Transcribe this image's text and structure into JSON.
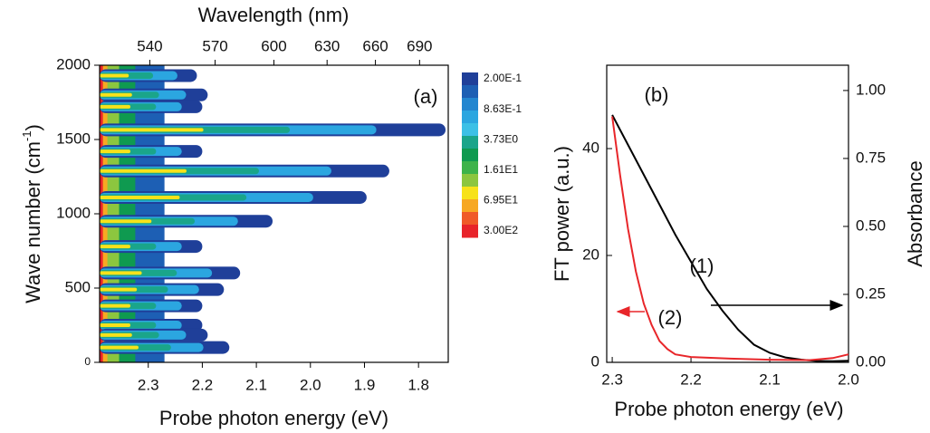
{
  "chart_data": [
    {
      "type": "contour",
      "annotation": "(a)",
      "x_label": "Probe photon energy (eV)",
      "xlim": [
        2.39,
        1.745
      ],
      "xticks": [
        2.3,
        2.2,
        2.1,
        {
          "value": 2,
          "label": "2.0"
        },
        1.9,
        1.8
      ],
      "x2_label": "Wavelength (nm)",
      "x2lim": [
        519,
        711
      ],
      "x2scale": "reciprocal",
      "x2ticks": [
        540,
        570,
        600,
        630,
        660,
        690
      ],
      "y_label": [
        "Wave number (cm",
        "-1",
        ")"
      ],
      "ylim": [
        0,
        2000
      ],
      "yticks": [
        0,
        500,
        1000,
        1500,
        2000
      ],
      "colorbar": {
        "labels": [
          "2.00E-1",
          "8.63E-1",
          "3.73E0",
          "1.61E1",
          "6.95E1",
          "3.00E2"
        ],
        "colors": [
          "#1f3f99",
          "#1d5fb4",
          "#2386d0",
          "#2ba6e0",
          "#3cc0e6",
          "#1aa58a",
          "#0f9a50",
          "#3db34a",
          "#8cc63f",
          "#f7e21a",
          "#f7a823",
          "#f05a28",
          "#e8232a"
        ]
      },
      "core_x_end": 2.27,
      "streaks": {
        "y": [
          1930,
          1800,
          1720,
          1565,
          1420,
          1288,
          1110,
          950,
          780,
          601,
          490,
          380,
          250,
          184,
          100
        ],
        "x_end": [
          2.21,
          2.19,
          2.2,
          1.75,
          2.2,
          1.854,
          1.896,
          2.07,
          2.2,
          2.13,
          2.16,
          2.2,
          2.2,
          2.19,
          2.15
        ]
      }
    },
    {
      "type": "line",
      "annotation": "(b)",
      "x_label": "Probe photon energy (eV)",
      "xlim": [
        2.307,
        2.0
      ],
      "xticks": [
        2.3,
        2.2,
        2.1,
        {
          "value": 2,
          "label": "2.0"
        }
      ],
      "y_label": "FT power (a.u.)",
      "ylim": [
        0,
        55.6
      ],
      "yticks": [
        0,
        20,
        40
      ],
      "y2_label": "Absorbance",
      "y2lim": [
        0,
        1.093
      ],
      "y2ticks": [
        {
          "value": 0,
          "label": "0.00"
        },
        {
          "value": 0.25,
          "label": "0.25"
        },
        {
          "value": 0.5,
          "label": "0.50"
        },
        {
          "value": 0.75,
          "label": "0.75"
        },
        {
          "value": 1,
          "label": "1.00"
        }
      ],
      "series": [
        {
          "name": "(1)",
          "color": "#000000",
          "axis": "y2",
          "x": [
            2.3,
            2.28,
            2.26,
            2.24,
            2.22,
            2.2,
            2.18,
            2.16,
            2.14,
            2.12,
            2.1,
            2.08,
            2.06,
            2.04,
            2.02,
            2.0
          ],
          "values": [
            0.91,
            0.8,
            0.69,
            0.58,
            0.47,
            0.37,
            0.27,
            0.19,
            0.12,
            0.065,
            0.035,
            0.018,
            0.01,
            0.005,
            0.004,
            0.006
          ]
        },
        {
          "name": "(2)",
          "color": "#e8262a",
          "x": [
            2.3,
            2.29,
            2.28,
            2.27,
            2.26,
            2.25,
            2.24,
            2.23,
            2.22,
            2.2,
            2.15,
            2.1,
            2.05,
            2.02,
            2.0
          ],
          "values": [
            46,
            35,
            25,
            17,
            11,
            7,
            4,
            2.5,
            1.5,
            1,
            0.7,
            0.5,
            0.4,
            0.8,
            1.5
          ]
        }
      ]
    }
  ]
}
